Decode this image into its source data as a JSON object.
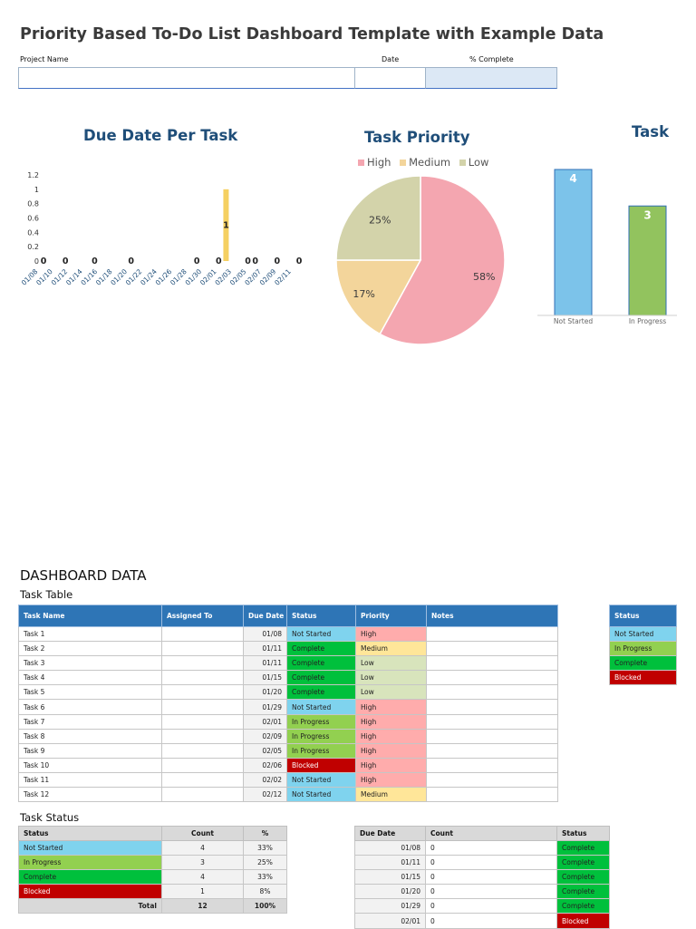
{
  "header": {
    "title": "Priority Based To-Do List Dashboard Template with Example Data",
    "project_name_label": "Project Name",
    "date_label": "Date",
    "percent_complete_label": "% Complete",
    "project_name_value": "",
    "date_value": "",
    "percent_complete_value": ""
  },
  "charts": {
    "due_date_title": "Due Date Per Task",
    "priority_title": "Task Priority",
    "status_title": "Task"
  },
  "chart_data": [
    {
      "type": "bar",
      "title": "Due Date Per Task",
      "categories": [
        "01/08",
        "01/10",
        "01/12",
        "01/14",
        "01/16",
        "01/18",
        "01/20",
        "01/22",
        "01/24",
        "01/26",
        "01/28",
        "01/30",
        "02/01",
        "02/03",
        "02/05",
        "02/07",
        "02/09",
        "02/11"
      ],
      "ylim": [
        0,
        1.2
      ],
      "yticks": [
        "0",
        "0.2",
        "0.4",
        "0.6",
        "0.8",
        "1",
        "1.2"
      ],
      "points": [
        {
          "x": "01/08",
          "y": 0
        },
        {
          "x": "01/11",
          "y": 0
        },
        {
          "x": "01/15",
          "y": 0
        },
        {
          "x": "01/20",
          "y": 0
        },
        {
          "x": "01/29",
          "y": 0
        },
        {
          "x": "02/01",
          "y": 0
        },
        {
          "x": "02/02",
          "y": 1
        },
        {
          "x": "02/05",
          "y": 0
        },
        {
          "x": "02/06",
          "y": 0
        },
        {
          "x": "02/09",
          "y": 0
        },
        {
          "x": "02/12",
          "y": 0
        }
      ],
      "color": "#f5d061"
    },
    {
      "type": "pie",
      "title": "Task Priority",
      "legend": "top",
      "slices": [
        {
          "name": "High",
          "value": 58,
          "label": "58%",
          "color": "#f4a6b0"
        },
        {
          "name": "Medium",
          "value": 17,
          "label": "17%",
          "color": "#f3d59b"
        },
        {
          "name": "Low",
          "value": 25,
          "label": "25%",
          "color": "#d3d3aa"
        }
      ]
    },
    {
      "type": "bar",
      "title": "Task",
      "categories": [
        "Not Started",
        "In Progress"
      ],
      "values": [
        4,
        3
      ],
      "colors": [
        "#7cc3ea",
        "#92c35e"
      ]
    }
  ],
  "dashboard": {
    "heading": "DASHBOARD DATA",
    "task_table_title": "Task Table",
    "task_columns": [
      "Task Name",
      "Assigned To",
      "Due Date",
      "Status",
      "Priority",
      "Notes"
    ],
    "tasks": [
      {
        "name": "Task 1",
        "assigned": "",
        "due": "01/08",
        "status": "Not Started",
        "priority": "High",
        "notes": ""
      },
      {
        "name": "Task 2",
        "assigned": "",
        "due": "01/11",
        "status": "Complete",
        "priority": "Medium",
        "notes": ""
      },
      {
        "name": "Task 3",
        "assigned": "",
        "due": "01/11",
        "status": "Complete",
        "priority": "Low",
        "notes": ""
      },
      {
        "name": "Task 4",
        "assigned": "",
        "due": "01/15",
        "status": "Complete",
        "priority": "Low",
        "notes": ""
      },
      {
        "name": "Task 5",
        "assigned": "",
        "due": "01/20",
        "status": "Complete",
        "priority": "Low",
        "notes": ""
      },
      {
        "name": "Task 6",
        "assigned": "",
        "due": "01/29",
        "status": "Not Started",
        "priority": "High",
        "notes": ""
      },
      {
        "name": "Task 7",
        "assigned": "",
        "due": "02/01",
        "status": "In Progress",
        "priority": "High",
        "notes": ""
      },
      {
        "name": "Task 8",
        "assigned": "",
        "due": "02/09",
        "status": "In Progress",
        "priority": "High",
        "notes": ""
      },
      {
        "name": "Task 9",
        "assigned": "",
        "due": "02/05",
        "status": "In Progress",
        "priority": "High",
        "notes": ""
      },
      {
        "name": "Task 10",
        "assigned": "",
        "due": "02/06",
        "status": "Blocked",
        "priority": "High",
        "notes": ""
      },
      {
        "name": "Task 11",
        "assigned": "",
        "due": "02/02",
        "status": "Not Started",
        "priority": "High",
        "notes": ""
      },
      {
        "name": "Task 12",
        "assigned": "",
        "due": "02/12",
        "status": "Not Started",
        "priority": "Medium",
        "notes": ""
      }
    ],
    "status_legend_title": "Status",
    "status_legend": [
      "Not Started",
      "In Progress",
      "Complete",
      "Blocked"
    ],
    "task_status_title": "Task Status",
    "task_status_columns": [
      "Status",
      "Count",
      "%"
    ],
    "task_status_rows": [
      {
        "status": "Not Started",
        "count": "4",
        "pct": "33%"
      },
      {
        "status": "In Progress",
        "count": "3",
        "pct": "25%"
      },
      {
        "status": "Complete",
        "count": "4",
        "pct": "33%"
      },
      {
        "status": "Blocked",
        "count": "1",
        "pct": "8%"
      }
    ],
    "task_status_total": {
      "label": "Total",
      "count": "12",
      "pct": "100%"
    },
    "due_columns": [
      "Due Date",
      "Count",
      "Status"
    ],
    "due_rows": [
      {
        "date": "01/08",
        "count": "0",
        "status": "Complete"
      },
      {
        "date": "01/11",
        "count": "0",
        "status": "Complete"
      },
      {
        "date": "01/15",
        "count": "0",
        "status": "Complete"
      },
      {
        "date": "01/20",
        "count": "0",
        "status": "Complete"
      },
      {
        "date": "01/29",
        "count": "0",
        "status": "Complete"
      },
      {
        "date": "02/01",
        "count": "0",
        "status": "Blocked"
      }
    ]
  }
}
